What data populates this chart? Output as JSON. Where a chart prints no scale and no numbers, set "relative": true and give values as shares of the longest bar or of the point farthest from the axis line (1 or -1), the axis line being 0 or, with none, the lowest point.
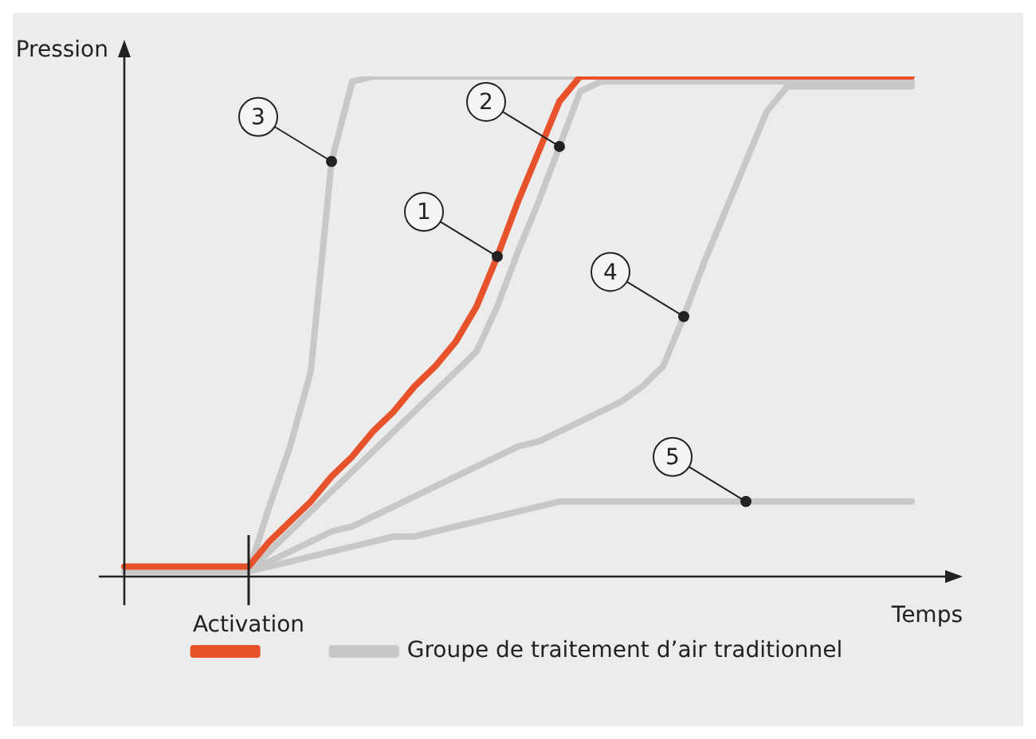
{
  "chart_data": {
    "type": "line",
    "relative": true,
    "xlabel": "Temps",
    "ylabel": "Pression",
    "legend": "bottom",
    "marker": "none",
    "line_style": "solid",
    "categories": [
      null,
      null,
      null,
      null,
      null,
      null,
      null,
      null,
      null,
      null,
      null,
      null,
      null,
      null,
      null,
      null,
      null,
      null,
      null,
      null,
      null,
      null,
      null,
      null,
      null,
      null,
      null,
      null,
      null,
      null,
      null,
      null,
      null,
      null,
      null,
      null,
      null,
      null,
      null
    ],
    "series": [
      {
        "color": "#e8522a",
        "values": [
          0.02,
          0.02,
          0.02,
          0.02,
          0.02,
          0.02,
          0.02,
          0.07,
          0.11,
          0.15,
          0.2,
          0.24,
          0.29,
          0.33,
          0.38,
          0.42,
          0.47,
          0.54,
          0.64,
          0.75,
          0.85,
          0.95,
          1,
          1,
          1,
          1,
          1,
          1,
          1,
          1,
          1,
          1,
          1,
          1,
          1,
          1,
          1,
          1,
          1
        ]
      },
      {
        "name": "Groupe de traitement d’air traditionnel",
        "color": "#c8c8c8",
        "values": [
          0.01,
          0.01,
          0.01,
          0.01,
          0.01,
          0.01,
          0.01,
          0.05,
          0.09,
          0.13,
          0.17,
          0.21,
          0.25,
          0.29,
          0.33,
          0.37,
          0.41,
          0.45,
          0.54,
          0.65,
          0.75,
          0.86,
          0.97,
          0.99,
          0.99,
          0.99,
          0.99,
          0.99,
          0.99,
          0.99,
          0.99,
          0.99,
          0.99,
          0.99,
          0.99,
          0.99,
          0.99,
          0.99,
          0.99
        ]
      },
      {
        "color": "#c8c8c8",
        "values": [
          null,
          null,
          null,
          null,
          null,
          null,
          0.01,
          0.14,
          0.26,
          0.41,
          0.83,
          0.99,
          1,
          1,
          1,
          1,
          1,
          1,
          1,
          1,
          1,
          1,
          1,
          null,
          null,
          null,
          null,
          null,
          null,
          null,
          null,
          null,
          null,
          null,
          null,
          null,
          null,
          null,
          null
        ]
      },
      {
        "color": "#c8c8c8",
        "values": [
          null,
          null,
          null,
          null,
          null,
          null,
          0.01,
          0.03,
          0.05,
          0.07,
          0.09,
          0.1,
          0.12,
          0.14,
          0.16,
          0.18,
          0.2,
          0.22,
          0.24,
          0.26,
          0.27,
          0.29,
          0.31,
          0.33,
          0.35,
          0.38,
          0.42,
          0.52,
          0.63,
          0.73,
          0.83,
          0.93,
          0.98,
          0.98,
          0.98,
          0.98,
          0.98,
          0.98,
          0.98
        ]
      },
      {
        "color": "#c8c8c8",
        "values": [
          null,
          null,
          null,
          null,
          null,
          null,
          0.01,
          0.02,
          0.03,
          0.04,
          0.05,
          0.06,
          0.07,
          0.08,
          0.08,
          0.09,
          0.1,
          0.11,
          0.12,
          0.13,
          0.14,
          0.15,
          0.15,
          0.15,
          0.15,
          0.15,
          0.15,
          0.15,
          0.15,
          0.15,
          0.15,
          0.15,
          0.15,
          0.15,
          0.15,
          0.15,
          0.15,
          0.15,
          0.15
        ]
      }
    ],
    "annotations": [
      "Activation",
      "1",
      "2",
      "3",
      "4",
      "5"
    ]
  }
}
